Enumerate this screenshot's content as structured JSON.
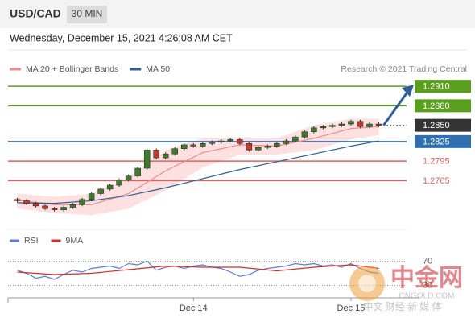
{
  "header": {
    "symbol": "USD/CAD",
    "interval": "30 MIN",
    "timestamp": "Wednesday, December 15, 2021 4:26:08 AM CET"
  },
  "chart_data": [
    {
      "type": "candlestick",
      "credit": "Research © 2021 Trading Central",
      "open": 1.2736,
      "close": [
        1.2734,
        1.273,
        1.2726,
        1.2722,
        1.272,
        1.2724,
        1.2728,
        1.2736,
        1.2745,
        1.2752,
        1.2758,
        1.2766,
        1.2772,
        1.2784,
        1.2812,
        1.28,
        1.2806,
        1.2814,
        1.282,
        1.2818,
        1.2822,
        1.2824,
        1.2826,
        1.2828,
        1.2822,
        1.2812,
        1.2816,
        1.2818,
        1.2822,
        1.2826,
        1.2832,
        1.284,
        1.2846,
        1.2848,
        1.285,
        1.2852,
        1.2856,
        1.2848,
        1.2852,
        1.285
      ],
      "up_color": "#3d7a2a",
      "down_color": "#c0392b",
      "xlim": [
        -1,
        40
      ],
      "ylim": [
        1.269,
        1.2925
      ],
      "overlays": [
        {
          "name": "MA 20 + Bollinger Bands",
          "color": "#f08c8c",
          "band_color": "#fde0e0",
          "x": [
            0,
            4,
            8,
            12,
            16,
            20,
            24,
            28,
            32,
            36,
            39
          ],
          "values": [
            1.2735,
            1.2728,
            1.2728,
            1.2745,
            1.278,
            1.2808,
            1.282,
            1.2818,
            1.283,
            1.2845,
            1.2848
          ],
          "upper": [
            1.2745,
            1.274,
            1.2745,
            1.277,
            1.2812,
            1.283,
            1.2832,
            1.283,
            1.285,
            1.286,
            1.286
          ],
          "lower": [
            1.2722,
            1.2715,
            1.2712,
            1.2722,
            1.275,
            1.2785,
            1.2805,
            1.2805,
            1.2812,
            1.2828,
            1.2835
          ]
        },
        {
          "name": "MA 50",
          "color": "#2f5f8f",
          "x": [
            0,
            4,
            8,
            12,
            16,
            20,
            24,
            28,
            32,
            36,
            39
          ],
          "values": [
            1.2731,
            1.273,
            1.2734,
            1.2742,
            1.2754,
            1.2768,
            1.2782,
            1.2794,
            1.2806,
            1.2818,
            1.2826
          ]
        }
      ],
      "levels": [
        {
          "value": 1.291,
          "label": "1.2910",
          "color": "#5a9e1e",
          "line": "solid",
          "label_style": "box"
        },
        {
          "value": 1.288,
          "label": "1.2880",
          "color": "#5a9e1e",
          "line": "solid",
          "label_style": "box"
        },
        {
          "value": 1.285,
          "label": "1.2850",
          "color": "#333333",
          "line": "dotted",
          "label_style": "box"
        },
        {
          "value": 1.2825,
          "label": "1.2825",
          "color": "#2f6fb0",
          "line": "solid",
          "label_style": "box"
        },
        {
          "value": 1.2795,
          "label": "1.2795",
          "color": "#e06060",
          "line": "solid",
          "label_style": "text"
        },
        {
          "value": 1.2765,
          "label": "1.2765",
          "color": "#e06060",
          "line": "solid",
          "label_style": "text"
        }
      ]
    },
    {
      "type": "line",
      "series": [
        {
          "name": "RSI",
          "color": "#5b7fd6",
          "values": [
            55,
            50,
            42,
            45,
            40,
            48,
            55,
            52,
            58,
            60,
            62,
            58,
            66,
            64,
            70,
            55,
            60,
            62,
            58,
            62,
            64,
            60,
            58,
            52,
            45,
            48,
            55,
            58,
            60,
            62,
            66,
            64,
            66,
            62,
            64,
            60,
            66,
            58,
            52,
            50
          ]
        },
        {
          "name": "9MA",
          "color": "#d32f2f",
          "x": [
            0,
            4,
            8,
            12,
            16,
            20,
            24,
            28,
            32,
            36,
            39
          ],
          "values": [
            52,
            48,
            50,
            56,
            62,
            60,
            60,
            54,
            60,
            64,
            58
          ]
        }
      ],
      "xlim": [
        -1,
        40
      ],
      "xticks": [
        {
          "value": 19,
          "label": "Dec 14"
        },
        {
          "value": 36,
          "label": "Dec 15"
        }
      ],
      "ylim": [
        0,
        100
      ],
      "yticks": [
        70,
        30
      ]
    }
  ],
  "watermark": {
    "logo": "中金网",
    "site": "CNGOLD.COM",
    "slogan": "中文 财经 新 媒 体"
  }
}
